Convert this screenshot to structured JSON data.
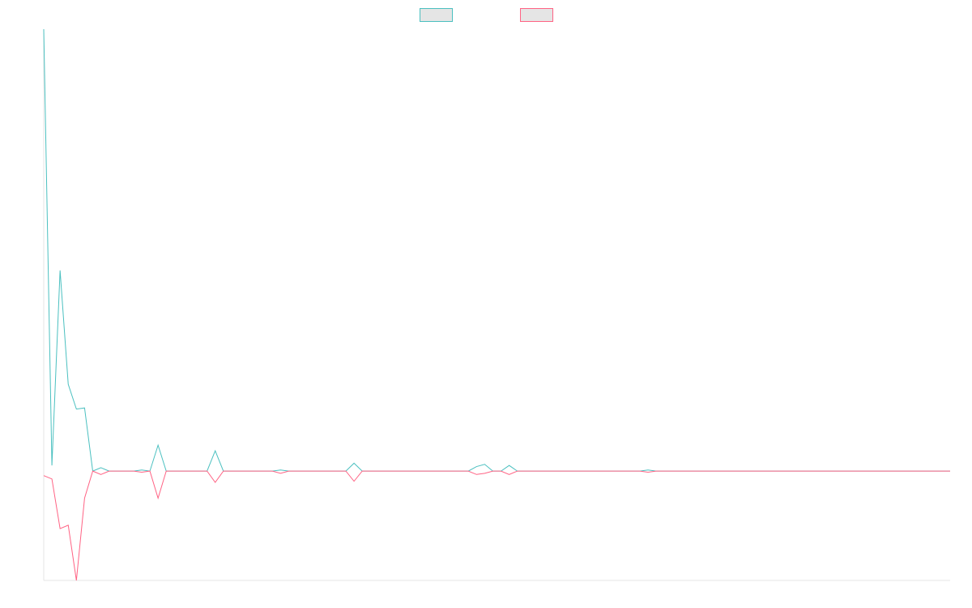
{
  "chart_data": {
    "type": "line",
    "title": "",
    "xlabel": "",
    "ylabel": "",
    "grid": false,
    "legend_placement": "top-center",
    "ylim": [
      -97,
      392
    ],
    "series": [
      {
        "color": "#4bc0c0",
        "swatch_fill": "#e5e5e5",
        "values": [
          392,
          5,
          178,
          77,
          55,
          56,
          0,
          3,
          0,
          0,
          0,
          0,
          1,
          0,
          23,
          0,
          0,
          0,
          0,
          0,
          0,
          18,
          0,
          0,
          0,
          0,
          0,
          0,
          0,
          1,
          0,
          0,
          0,
          0,
          0,
          0,
          0,
          0,
          7,
          0,
          0,
          0,
          0,
          0,
          0,
          0,
          0,
          0,
          0,
          0,
          0,
          0,
          0,
          4,
          6,
          0,
          0,
          5,
          0,
          0,
          0,
          0,
          0,
          0,
          0,
          0,
          0,
          0,
          0,
          0,
          0,
          0,
          0,
          0,
          1,
          0,
          0,
          0,
          0,
          0,
          0,
          0,
          0,
          0,
          0,
          0,
          0,
          0,
          0,
          0,
          0,
          0,
          0,
          0,
          0,
          0,
          0,
          0,
          0,
          0,
          0,
          0,
          0,
          0,
          0,
          0,
          0,
          0,
          0,
          0,
          0,
          0
        ]
      },
      {
        "color": "#ff6384",
        "swatch_fill": "#e5e5e5",
        "values": [
          -4,
          -7,
          -51,
          -48,
          -97,
          -24,
          0,
          -3,
          0,
          0,
          0,
          0,
          -1,
          0,
          -24,
          0,
          0,
          0,
          0,
          0,
          0,
          -10,
          0,
          0,
          0,
          0,
          0,
          0,
          0,
          -2,
          0,
          0,
          0,
          0,
          0,
          0,
          0,
          0,
          -9,
          0,
          0,
          0,
          0,
          0,
          0,
          0,
          0,
          0,
          0,
          0,
          0,
          0,
          0,
          -3,
          -2,
          0,
          0,
          -3,
          0,
          0,
          0,
          0,
          0,
          0,
          0,
          0,
          0,
          0,
          0,
          0,
          0,
          0,
          0,
          0,
          -1,
          0,
          0,
          0,
          0,
          0,
          0,
          0,
          0,
          0,
          0,
          0,
          0,
          0,
          0,
          0,
          0,
          0,
          0,
          0,
          0,
          0,
          0,
          0,
          0,
          0,
          0,
          0,
          0,
          0,
          0,
          0,
          0,
          0,
          0,
          0,
          0,
          0
        ]
      }
    ]
  }
}
